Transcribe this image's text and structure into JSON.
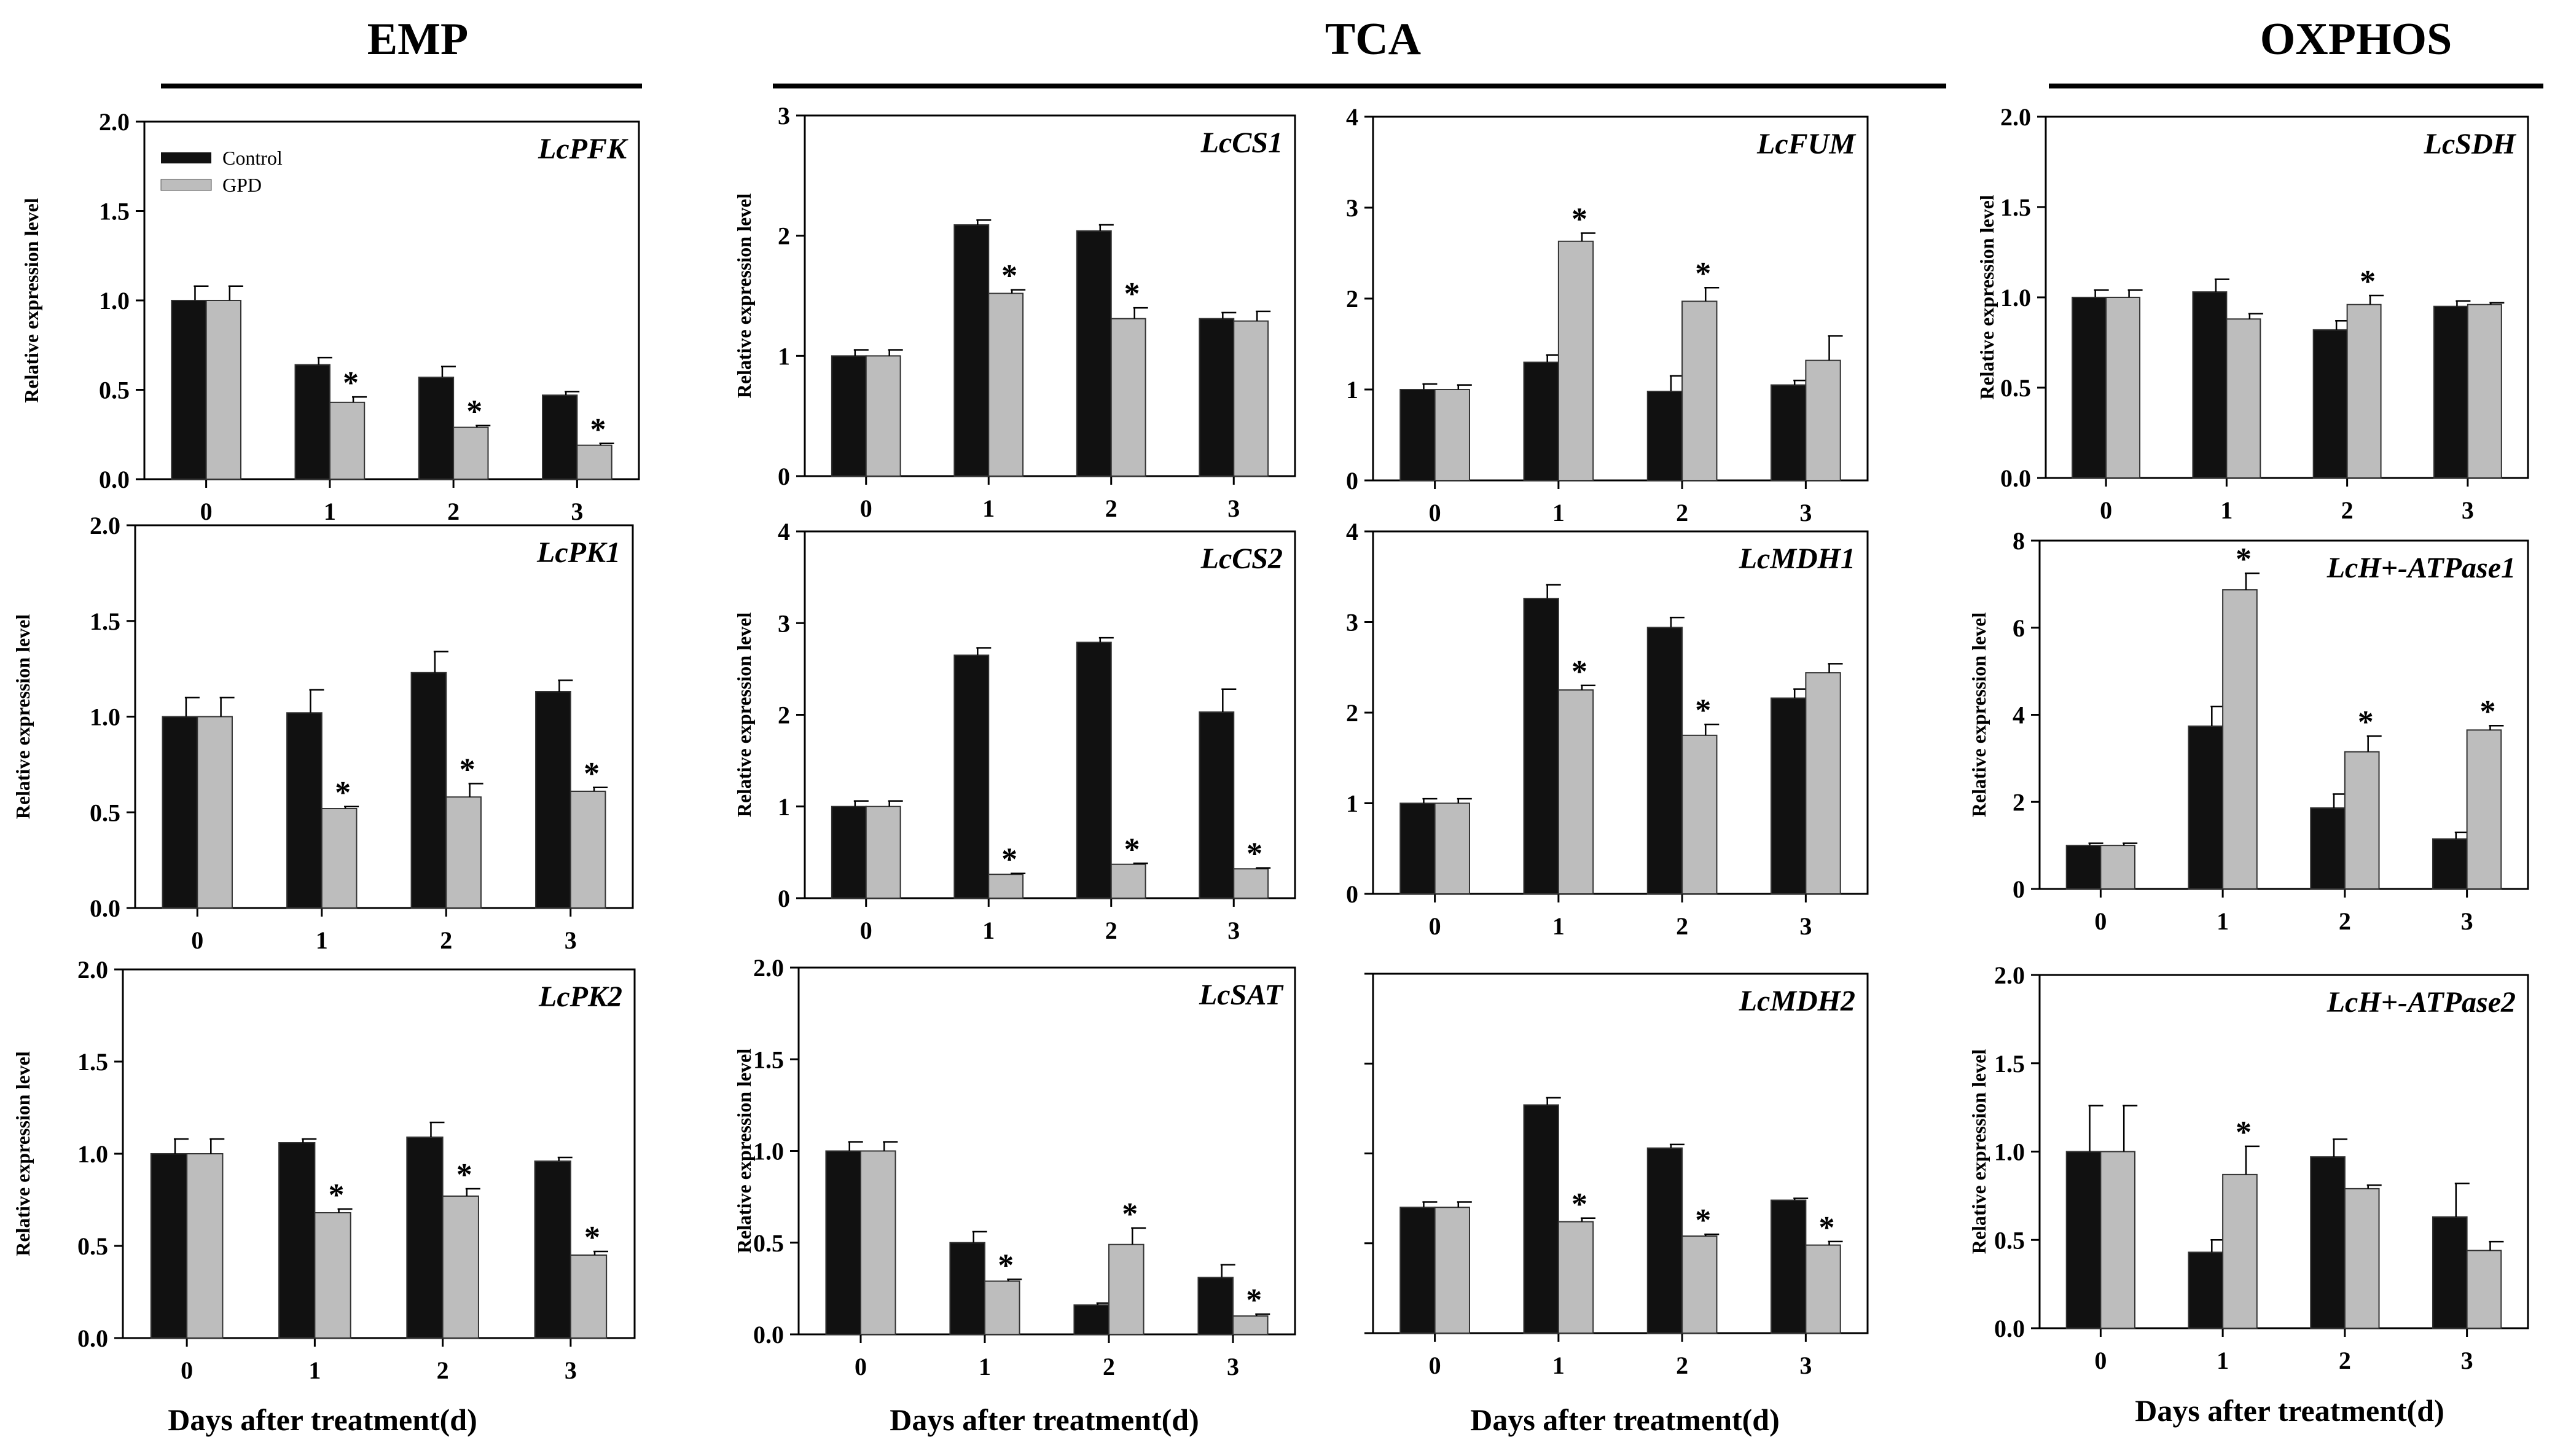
{
  "groups": [
    {
      "label": "EMP"
    },
    {
      "label": "TCA"
    },
    {
      "label": "OXPHOS"
    }
  ],
  "legend": {
    "items": [
      {
        "name": "Control",
        "color": "#111111"
      },
      {
        "name": "GPD",
        "color": "#bdbdbd"
      }
    ]
  },
  "colors": {
    "control": "#111111",
    "gpd": "#bdbdbd"
  },
  "bottom_labels": [
    "Days after treatment(d)",
    "Days after treatment(d)",
    "Days after treatment(d)",
    "Days after treatment(d)"
  ],
  "chart_data": [
    {
      "type": "bar",
      "title": "LcPFK",
      "xlabel": "",
      "ylabel": "Relative expression level",
      "categories": [
        "0",
        "1",
        "2",
        "3"
      ],
      "ylim": [
        0,
        2.0
      ],
      "yticks": [
        "0.0",
        "0.5",
        "1.0",
        "1.5",
        "2.0"
      ],
      "series": [
        {
          "name": "Control",
          "values": [
            1.0,
            0.64,
            0.57,
            0.47
          ],
          "err": [
            0.08,
            0.04,
            0.06,
            0.02
          ]
        },
        {
          "name": "GPD",
          "values": [
            1.0,
            0.43,
            0.29,
            0.19
          ],
          "err": [
            0.08,
            0.03,
            0.01,
            0.01
          ],
          "sig": [
            false,
            true,
            true,
            true
          ]
        }
      ]
    },
    {
      "type": "bar",
      "title": "LcCS1",
      "xlabel": "",
      "ylabel": "Relative expression level",
      "categories": [
        "0",
        "1",
        "2",
        "3"
      ],
      "ylim": [
        0,
        3
      ],
      "yticks": [
        "0",
        "1",
        "2",
        "3"
      ],
      "series": [
        {
          "name": "Control",
          "values": [
            1.0,
            2.09,
            2.04,
            1.31
          ],
          "err": [
            0.05,
            0.04,
            0.05,
            0.05
          ]
        },
        {
          "name": "GPD",
          "values": [
            1.0,
            1.52,
            1.31,
            1.29
          ],
          "err": [
            0.05,
            0.03,
            0.09,
            0.08
          ],
          "sig": [
            false,
            true,
            true,
            false
          ]
        }
      ]
    },
    {
      "type": "bar",
      "title": "LcFUM",
      "xlabel": "",
      "ylabel": "",
      "categories": [
        "0",
        "1",
        "2",
        "3"
      ],
      "ylim": [
        0,
        4
      ],
      "yticks": [
        "0",
        "1",
        "2",
        "3",
        "4"
      ],
      "series": [
        {
          "name": "Control",
          "values": [
            1.0,
            1.3,
            0.98,
            1.05
          ],
          "err": [
            0.06,
            0.08,
            0.17,
            0.05
          ]
        },
        {
          "name": "GPD",
          "values": [
            1.0,
            2.63,
            1.97,
            1.32
          ],
          "err": [
            0.05,
            0.09,
            0.15,
            0.27
          ],
          "sig": [
            false,
            true,
            true,
            false
          ]
        }
      ]
    },
    {
      "type": "bar",
      "title": "LcSDH",
      "xlabel": "",
      "ylabel": "Relative expression level",
      "categories": [
        "0",
        "1",
        "2",
        "3"
      ],
      "ylim": [
        0,
        2.0
      ],
      "yticks": [
        "0.0",
        "0.5",
        "1.0",
        "1.5",
        "2.0"
      ],
      "series": [
        {
          "name": "Control",
          "values": [
            1.0,
            1.03,
            0.82,
            0.95
          ],
          "err": [
            0.04,
            0.07,
            0.05,
            0.03
          ]
        },
        {
          "name": "GPD",
          "values": [
            1.0,
            0.88,
            0.96,
            0.96
          ],
          "err": [
            0.04,
            0.03,
            0.05,
            0.01
          ],
          "sig": [
            false,
            false,
            true,
            false
          ]
        }
      ]
    },
    {
      "type": "bar",
      "title": "LcPK1",
      "xlabel": "",
      "ylabel": "Relative expression level",
      "categories": [
        "0",
        "1",
        "2",
        "3"
      ],
      "ylim": [
        0,
        2.0
      ],
      "yticks": [
        "0.0",
        "0.5",
        "1.0",
        "1.5",
        "2.0"
      ],
      "series": [
        {
          "name": "Control",
          "values": [
            1.0,
            1.02,
            1.23,
            1.13
          ],
          "err": [
            0.1,
            0.12,
            0.11,
            0.06
          ]
        },
        {
          "name": "GPD",
          "values": [
            1.0,
            0.52,
            0.58,
            0.61
          ],
          "err": [
            0.1,
            0.01,
            0.07,
            0.02
          ],
          "sig": [
            false,
            true,
            true,
            true
          ]
        }
      ]
    },
    {
      "type": "bar",
      "title": "LcCS2",
      "xlabel": "",
      "ylabel": "Relative expression level",
      "categories": [
        "0",
        "1",
        "2",
        "3"
      ],
      "ylim": [
        0,
        4
      ],
      "yticks": [
        "0",
        "1",
        "2",
        "3",
        "4"
      ],
      "series": [
        {
          "name": "Control",
          "values": [
            1.0,
            2.65,
            2.79,
            2.03
          ],
          "err": [
            0.06,
            0.08,
            0.05,
            0.25
          ]
        },
        {
          "name": "GPD",
          "values": [
            1.0,
            0.26,
            0.37,
            0.32
          ],
          "err": [
            0.06,
            0.01,
            0.01,
            0.01
          ],
          "sig": [
            false,
            true,
            true,
            true
          ]
        }
      ]
    },
    {
      "type": "bar",
      "title": "LcMDH1",
      "xlabel": "",
      "ylabel": "",
      "categories": [
        "0",
        "1",
        "2",
        "3"
      ],
      "ylim": [
        0,
        4
      ],
      "yticks": [
        "0",
        "1",
        "2",
        "3",
        "4"
      ],
      "series": [
        {
          "name": "Control",
          "values": [
            1.0,
            3.26,
            2.94,
            2.16
          ],
          "err": [
            0.05,
            0.15,
            0.11,
            0.1
          ]
        },
        {
          "name": "GPD",
          "values": [
            1.0,
            2.25,
            1.75,
            2.44
          ],
          "err": [
            0.05,
            0.05,
            0.12,
            0.1
          ],
          "sig": [
            false,
            true,
            true,
            false
          ]
        }
      ]
    },
    {
      "type": "bar",
      "title": "LcH+-ATPase1",
      "xlabel": "",
      "ylabel": "Relative expression level",
      "categories": [
        "0",
        "1",
        "2",
        "3"
      ],
      "ylim": [
        0,
        8
      ],
      "yticks": [
        "0",
        "2",
        "4",
        "6",
        "8"
      ],
      "series": [
        {
          "name": "Control",
          "values": [
            1.0,
            3.74,
            1.86,
            1.15
          ],
          "err": [
            0.05,
            0.45,
            0.32,
            0.15
          ]
        },
        {
          "name": "GPD",
          "values": [
            1.0,
            6.87,
            3.15,
            3.65
          ],
          "err": [
            0.05,
            0.38,
            0.36,
            0.1
          ],
          "sig": [
            false,
            true,
            true,
            true
          ]
        }
      ]
    },
    {
      "type": "bar",
      "title": "LcPK2",
      "xlabel": "",
      "ylabel": "Relative expression level",
      "categories": [
        "0",
        "1",
        "2",
        "3"
      ],
      "ylim": [
        0,
        2.0
      ],
      "yticks": [
        "0.0",
        "0.5",
        "1.0",
        "1.5",
        "2.0"
      ],
      "series": [
        {
          "name": "Control",
          "values": [
            1.0,
            1.06,
            1.09,
            0.96
          ],
          "err": [
            0.08,
            0.02,
            0.08,
            0.02
          ]
        },
        {
          "name": "GPD",
          "values": [
            1.0,
            0.68,
            0.77,
            0.45
          ],
          "err": [
            0.08,
            0.02,
            0.04,
            0.02
          ],
          "sig": [
            false,
            true,
            true,
            true
          ]
        }
      ]
    },
    {
      "type": "bar",
      "title": "LcSAT",
      "xlabel": "",
      "ylabel": "Relative expression level",
      "categories": [
        "0",
        "1",
        "2",
        "3"
      ],
      "ylim": [
        0,
        2.0
      ],
      "yticks": [
        "0.0",
        "0.5",
        "1.0",
        "1.5",
        "2.0"
      ],
      "series": [
        {
          "name": "Control",
          "values": [
            1.0,
            0.5,
            0.16,
            0.31
          ],
          "err": [
            0.05,
            0.06,
            0.01,
            0.07
          ]
        },
        {
          "name": "GPD",
          "values": [
            1.0,
            0.29,
            0.49,
            0.1
          ],
          "err": [
            0.05,
            0.01,
            0.09,
            0.01
          ],
          "sig": [
            false,
            true,
            true,
            true
          ]
        }
      ]
    },
    {
      "type": "bar",
      "title": "LcMDH2",
      "xlabel": "",
      "ylabel": "",
      "categories": [
        "0",
        "1",
        "2",
        "3"
      ],
      "ylim": [
        0,
        2.0
      ],
      "yticks": [
        "",
        "",
        "",
        "",
        ""
      ],
      "series": [
        {
          "name": "Control",
          "values": [
            0.7,
            1.27,
            1.03,
            0.74
          ],
          "err": [
            0.03,
            0.04,
            0.02,
            0.01
          ]
        },
        {
          "name": "GPD",
          "values": [
            0.7,
            0.62,
            0.54,
            0.49
          ],
          "err": [
            0.03,
            0.02,
            0.01,
            0.02
          ],
          "sig": [
            false,
            true,
            true,
            true
          ]
        }
      ]
    },
    {
      "type": "bar",
      "title": "LcH+-ATPase2",
      "xlabel": "",
      "ylabel": "Relative expression level",
      "categories": [
        "0",
        "1",
        "2",
        "3"
      ],
      "ylim": [
        0,
        2.0
      ],
      "yticks": [
        "0.0",
        "0.5",
        "1.0",
        "1.5",
        "2.0"
      ],
      "series": [
        {
          "name": "Control",
          "values": [
            1.0,
            0.43,
            0.97,
            0.63
          ],
          "err": [
            0.26,
            0.07,
            0.1,
            0.19
          ]
        },
        {
          "name": "GPD",
          "values": [
            1.0,
            0.87,
            0.79,
            0.44
          ],
          "err": [
            0.26,
            0.16,
            0.02,
            0.05
          ],
          "sig": [
            false,
            true,
            false,
            false
          ]
        }
      ]
    }
  ]
}
